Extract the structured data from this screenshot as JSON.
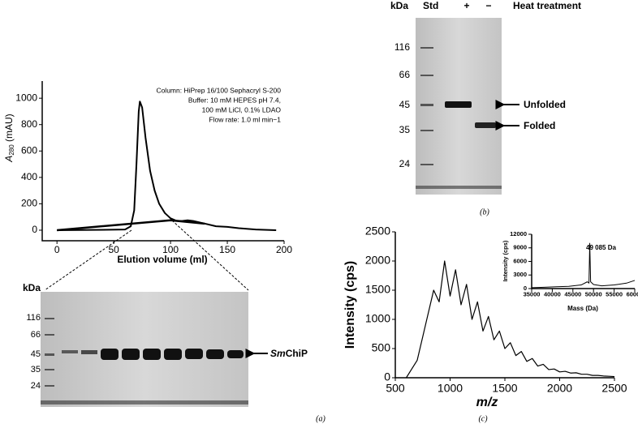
{
  "chart_data": [
    {
      "type": "line",
      "ylabel": [
        "A",
        "280",
        " (mAU)"
      ],
      "xlabel": "Elution volume (ml)",
      "xlim": [
        -13,
        200
      ],
      "xticks": [
        0,
        50,
        100,
        150,
        200
      ],
      "ylim": [
        -80,
        1130
      ],
      "yticks": [
        0,
        200,
        400,
        600,
        800,
        1000
      ],
      "annotations": [
        "Column: HiPrep 16/100 Sephacryl S-200",
        "Buffer: 10 mM HEPES pH 7.4,",
        "100 mM LiCl, 0.1% LDAO",
        "Flow rate: 1.0 ml min−1"
      ],
      "series": [
        {
          "color": "#000000",
          "x": [
            0,
            30,
            60,
            65,
            68,
            70,
            72,
            73,
            75,
            78,
            82,
            86,
            90,
            95,
            100,
            105,
            110,
            115,
            120,
            130,
            140,
            150,
            160,
            175,
            193
          ],
          "values": [
            0,
            2,
            5,
            30,
            150,
            500,
            900,
            975,
            930,
            700,
            450,
            300,
            200,
            130,
            90,
            72,
            70,
            75,
            70,
            50,
            30,
            25,
            15,
            5,
            0
          ]
        },
        {
          "color": "#000000",
          "x": [
            0,
            100,
            130
          ],
          "values": [
            0,
            75,
            50
          ]
        }
      ]
    },
    {
      "type": "line",
      "ylabel": "Intensity (cps)",
      "xlabel": "m/z",
      "xlim": [
        500,
        2500
      ],
      "xticks": [
        500,
        1000,
        1500,
        2000,
        2500
      ],
      "ylim": [
        0,
        2500
      ],
      "yticks": [
        0,
        500,
        1000,
        1500,
        2000,
        2500
      ],
      "series": [
        {
          "color": "#000000",
          "x": [
            600,
            650,
            700,
            750,
            800,
            850,
            900,
            950,
            1000,
            1050,
            1100,
            1150,
            1200,
            1250,
            1300,
            1350,
            1400,
            1450,
            1500,
            1550,
            1600,
            1650,
            1700,
            1750,
            1800,
            1850,
            1900,
            1950,
            2000,
            2050,
            2100,
            2150,
            2200,
            2250,
            2300,
            2350,
            2400,
            2450,
            2500
          ],
          "values": [
            0,
            150,
            300,
            700,
            1100,
            1500,
            1300,
            2000,
            1400,
            1850,
            1250,
            1600,
            1000,
            1300,
            800,
            1050,
            650,
            800,
            500,
            600,
            380,
            450,
            280,
            330,
            200,
            230,
            140,
            150,
            100,
            110,
            80,
            85,
            60,
            60,
            40,
            40,
            30,
            25,
            20
          ]
        }
      ]
    },
    {
      "type": "line",
      "ylabel": "Intensity (cps)",
      "xlabel": "Mass (Da)",
      "xlim": [
        35000,
        60000
      ],
      "xticks": [
        35000,
        40000,
        45000,
        50000,
        55000,
        60000
      ],
      "ylim": [
        0,
        12000
      ],
      "yticks": [
        0,
        3000,
        6000,
        9000,
        12000
      ],
      "annotations": [
        "49 085 Da"
      ],
      "series": [
        {
          "color": "#000000",
          "x": [
            35000,
            38000,
            41000,
            44000,
            47000,
            48500,
            48900,
            49085,
            49300,
            50000,
            52000,
            55000,
            58000,
            60000
          ],
          "values": [
            200,
            300,
            400,
            500,
            800,
            1500,
            1200,
            10000,
            1500,
            900,
            600,
            800,
            1200,
            1800
          ]
        }
      ]
    }
  ],
  "gel_a": {
    "unit": "kDa",
    "markers": [
      "116",
      "66",
      "45",
      "35",
      "24"
    ],
    "label": [
      "Sm",
      "ChiP"
    ]
  },
  "gel_b": {
    "unit": "kDa",
    "lanes": [
      "Std",
      "+",
      "−"
    ],
    "header": "Heat treatment",
    "markers": [
      "116",
      "66",
      "45",
      "35",
      "24"
    ],
    "bands": [
      "Unfolded",
      "Folded"
    ]
  },
  "captions": [
    "(a)",
    "(b)",
    "(c)"
  ]
}
